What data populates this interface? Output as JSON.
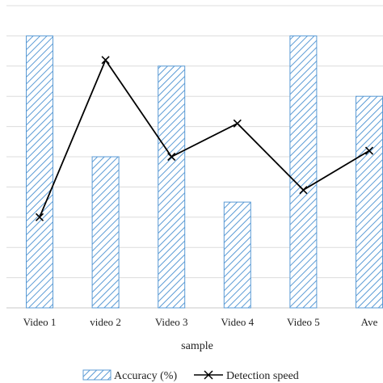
{
  "chart_data": {
    "type": "bar",
    "title": "",
    "xlabel": "sample",
    "ylabel": "",
    "categories": [
      "Video 1",
      "video 2",
      "Video 3",
      "Video 4",
      "Video 5",
      "Ave"
    ],
    "ylim": [
      0,
      10
    ],
    "grid": true,
    "legend_position": "bottom",
    "series": [
      {
        "name": "Accuracy (%)",
        "type": "bar",
        "pattern": "diagonal-hatch",
        "color": "#5b9bd5",
        "values": [
          9.0,
          5.0,
          8.0,
          3.5,
          9.0,
          7.0
        ]
      },
      {
        "name": "Detection speed",
        "type": "line",
        "marker": "x",
        "color": "#000000",
        "values": [
          3.0,
          8.2,
          5.0,
          6.1,
          3.9,
          5.2
        ]
      }
    ]
  }
}
